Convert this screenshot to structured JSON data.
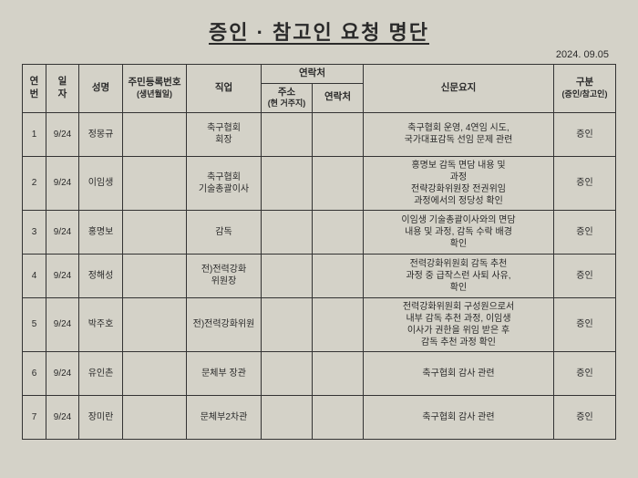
{
  "title": "증인 · 참고인 요청 명단",
  "date": "2024. 09.05",
  "headers": {
    "no": "연\n번",
    "date": "일\n자",
    "name": "성명",
    "id": "주민등록번호",
    "id_sub": "(생년월일)",
    "job": "직업",
    "contact_group": "연락처",
    "addr": "주소",
    "addr_sub": "(현 거주지)",
    "contact": "연락처",
    "summary": "신문요지",
    "type": "구분",
    "type_sub": "(증인/참고인)"
  },
  "rows": [
    {
      "no": "1",
      "date": "9/24",
      "name": "정몽규",
      "id": "",
      "job": "축구협회\n회장",
      "addr": "",
      "contact": "",
      "summary": "축구협회 운영, 4연임 시도,\n국가대표감독 선임 문제 관련",
      "type": "증인"
    },
    {
      "no": "2",
      "date": "9/24",
      "name": "이임생",
      "id": "",
      "job": "축구협회\n기술총괄이사",
      "addr": "",
      "contact": "",
      "summary": "홍명보 감독 면담 내용 및\n과정\n전략강화위원장 전권위임\n과정에서의 정당성 확인",
      "type": "증인"
    },
    {
      "no": "3",
      "date": "9/24",
      "name": "홍명보",
      "id": "",
      "job": "감독",
      "addr": "",
      "contact": "",
      "summary": "이임생 기술총괄이사와의 면담\n내용 및 과정, 감독 수락 배경\n확인",
      "type": "증인"
    },
    {
      "no": "4",
      "date": "9/24",
      "name": "정해성",
      "id": "",
      "job": "전)전력강화\n위원장",
      "addr": "",
      "contact": "",
      "summary": "전력강화위원회 감독 추천\n과정 중 급작스런 사퇴 사유,\n확인",
      "type": "증인"
    },
    {
      "no": "5",
      "date": "9/24",
      "name": "박주호",
      "id": "",
      "job": "전)전력강화위원",
      "addr": "",
      "contact": "",
      "summary": "전력강화위원회 구성원으로서\n내부 감독 추천 과정, 이임생\n이사가 권한을 위임 받은 후\n감독 추천 과정 확인",
      "type": "증인"
    },
    {
      "no": "6",
      "date": "9/24",
      "name": "유인촌",
      "id": "",
      "job": "문체부 장관",
      "addr": "",
      "contact": "",
      "summary": "축구협회 감사 관련",
      "type": "증인"
    },
    {
      "no": "7",
      "date": "9/24",
      "name": "장미란",
      "id": "",
      "job": "문체부2차관",
      "addr": "",
      "contact": "",
      "summary": "축구협회 감사 관련",
      "type": "증인"
    }
  ]
}
